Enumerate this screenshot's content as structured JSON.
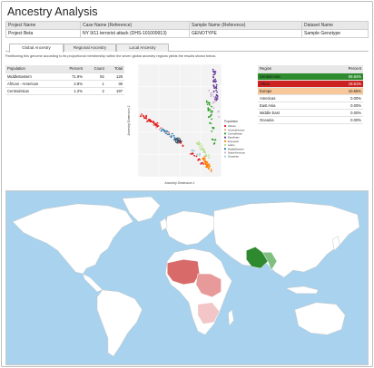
{
  "title": "Ancestry Analysis",
  "info_table": {
    "headers": [
      "Project Name",
      "Case Name (Reference)",
      "Sample Name (Reference)",
      "Dataset Name"
    ],
    "values": [
      "Project Beta",
      "NY 9/11 terrorist attack (DHS-101009913)",
      "GENOTYPE",
      "Sample Genotype"
    ]
  },
  "tabs": [
    "Global Ancestry",
    "Regional Ancestry",
    "Local Ancestry"
  ],
  "active_tab": 0,
  "description": "Partitioning this genome according to its proportional membership within the seven global ancestry regions yields the results shown below.",
  "population_table": {
    "headers": [
      "Population",
      "Percent",
      "Count",
      "Total"
    ],
    "rows": [
      [
        "MiddleEastern",
        "71.9%",
        "92",
        "128"
      ],
      [
        "African - American",
        "2.8%",
        "1",
        "36"
      ],
      [
        "CentralAsian",
        "1.2%",
        "2",
        "197"
      ]
    ]
  },
  "region_table": {
    "headers": [
      "Region",
      "Percent"
    ],
    "rows": [
      {
        "name": "Central Asia",
        "percent": "69.84%",
        "color": "#2e8b2e"
      },
      {
        "name": "Africa",
        "percent": "19.51%",
        "color": "#cc2222"
      },
      {
        "name": "Europe",
        "percent": "10.65%",
        "color": "#f8c89a"
      },
      {
        "name": "Americas",
        "percent": "0.00%",
        "color": ""
      },
      {
        "name": "East Asia",
        "percent": "0.00%",
        "color": ""
      },
      {
        "name": "Middle East",
        "percent": "0.00%",
        "color": ""
      },
      {
        "name": "Oceania",
        "percent": "0.00%",
        "color": ""
      }
    ]
  },
  "chart_data": {
    "type": "scatter",
    "xlabel": "Ancestry Dimension 1",
    "ylabel": "Ancestry Dimension 2",
    "legend_title": "Population",
    "legend_position": "right",
    "grid": true,
    "legend": [
      {
        "name": "African",
        "color": "#e31a1c"
      },
      {
        "name": "AncientHuman",
        "color": "#fb9a99"
      },
      {
        "name": "CentralAsian",
        "color": "#33a02c"
      },
      {
        "name": "EastAsian",
        "color": "#6a3d9a"
      },
      {
        "name": "European",
        "color": "#ff7f00"
      },
      {
        "name": "Latino",
        "color": "#b2df8a"
      },
      {
        "name": "MiddleEastern",
        "color": "#1f78b4"
      },
      {
        "name": "NativeAmerican",
        "color": "#cab2d6"
      },
      {
        "name": "Oceanian",
        "color": "#a6cee3"
      }
    ]
  },
  "map": {
    "ocean_color": "#a8d2ed",
    "land_color": "#ffffff",
    "highlights": [
      {
        "region": "Central Asia",
        "color": "#2f8a2f"
      },
      {
        "region": "West Africa",
        "color": "#d86a6a"
      },
      {
        "region": "Central Africa",
        "color": "#e89a9a"
      },
      {
        "region": "Southern Africa",
        "color": "#f2c6c6"
      }
    ]
  }
}
